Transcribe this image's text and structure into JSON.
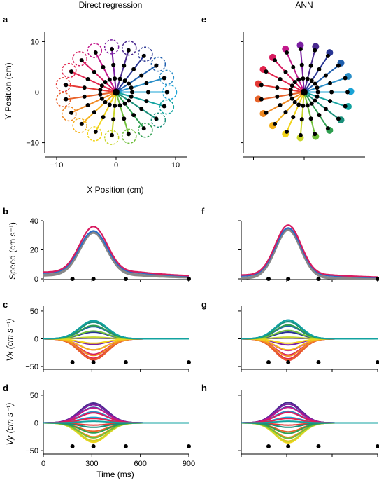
{
  "columns": [
    {
      "letter_top": "a",
      "title": "Direct regression"
    },
    {
      "letter_top": "e",
      "title": "ANN"
    }
  ],
  "panel_letters": [
    "a",
    "b",
    "c",
    "d",
    "e",
    "f",
    "g",
    "h"
  ],
  "colors": [
    "#1aa3d6",
    "#2b8fc8",
    "#1f5fae",
    "#283593",
    "#4a2a8f",
    "#7b1fa2",
    "#c2188b",
    "#d81b60",
    "#e2244d",
    "#e53935",
    "#e8632a",
    "#f08a24",
    "#f5b21c",
    "#f2d41a",
    "#c9d62a",
    "#6fbf3a",
    "#2e9e4f",
    "#1a8f7a",
    "#13a3a0"
  ],
  "chart_data": [
    {
      "id": "a",
      "type": "scatter",
      "title": "Direct regression",
      "xlabel": "X Position (cm)",
      "ylabel": "Y Position (cm)",
      "xlim": [
        -12,
        12
      ],
      "ylim": [
        -12,
        12
      ],
      "xticks": [
        -10,
        0,
        10
      ],
      "yticks": [
        -10,
        0,
        10
      ],
      "xtick_labels": [
        "−10",
        "0",
        "10"
      ],
      "ytick_labels": [
        "−10",
        "0",
        "10"
      ],
      "n_targets": 19,
      "target_radius": 9,
      "waypoints": [
        0.3,
        0.6,
        0.95
      ],
      "target_marker": "dashed-circle"
    },
    {
      "id": "e",
      "type": "scatter",
      "title": "ANN",
      "xlim": [
        -12,
        12
      ],
      "ylim": [
        -12,
        12
      ],
      "xticks": [
        -10,
        0,
        10
      ],
      "yticks": [
        -10,
        0,
        10
      ],
      "n_targets": 19,
      "target_radius": 9,
      "waypoints": [
        0.3,
        0.6,
        0.95
      ],
      "target_marker": "filled-dot"
    },
    {
      "id": "b",
      "type": "line",
      "ylabel": "Speed (cm s⁻¹)",
      "xlim": [
        0,
        900
      ],
      "ylim": [
        0,
        40
      ],
      "yticks": [
        0,
        20,
        40
      ],
      "ytick_labels": [
        "0",
        "20",
        "40"
      ],
      "peak_time": 310,
      "peak": [
        33,
        36
      ],
      "baseline": 4,
      "event_times": [
        180,
        310,
        510,
        900
      ]
    },
    {
      "id": "c",
      "type": "line",
      "ylabel": "Vx (cm s⁻¹)",
      "xlim": [
        0,
        900
      ],
      "ylim": [
        -60,
        60
      ],
      "yticks": [
        -50,
        0,
        50
      ],
      "ytick_labels": [
        "−50",
        "0",
        "50"
      ],
      "peak_time": 310,
      "amplitudes": [
        32,
        30,
        22,
        12,
        2,
        -10,
        -20,
        -28,
        -35,
        -38,
        -37,
        -30,
        -20,
        -8,
        3,
        14,
        24,
        30,
        33
      ],
      "event_times": [
        180,
        310,
        510,
        900
      ]
    },
    {
      "id": "d",
      "type": "line",
      "ylabel": "Vy (cm s⁻¹)",
      "xlim": [
        0,
        900
      ],
      "ylim": [
        -60,
        60
      ],
      "yticks": [
        -50,
        0,
        50
      ],
      "ytick_labels": [
        "−50",
        "0",
        "50"
      ],
      "peak_time": 310,
      "amplitudes": [
        10,
        20,
        28,
        33,
        36,
        33,
        27,
        18,
        8,
        -4,
        -15,
        -25,
        -32,
        -35,
        -33,
        -27,
        -18,
        -8,
        3
      ],
      "event_times": [
        180,
        310,
        510,
        900
      ]
    },
    {
      "id": "f",
      "type": "line",
      "xlim": [
        0,
        900
      ],
      "ylim": [
        0,
        40
      ],
      "peak_time": 310,
      "peak": [
        35,
        37
      ],
      "baseline": 2,
      "event_times": [
        180,
        310,
        510,
        900
      ]
    },
    {
      "id": "g",
      "type": "line",
      "xlim": [
        0,
        900
      ],
      "ylim": [
        -60,
        60
      ],
      "peak_time": 310,
      "amplitudes": [
        34,
        31,
        23,
        12,
        2,
        -11,
        -21,
        -29,
        -36,
        -39,
        -38,
        -31,
        -20,
        -8,
        3,
        15,
        25,
        31,
        34
      ],
      "event_times": [
        180,
        310,
        510,
        900
      ]
    },
    {
      "id": "h",
      "type": "line",
      "xlim": [
        0,
        900
      ],
      "ylim": [
        -60,
        60
      ],
      "peak_time": 310,
      "amplitudes": [
        10,
        21,
        29,
        34,
        37,
        34,
        28,
        19,
        8,
        -4,
        -16,
        -26,
        -33,
        -36,
        -34,
        -28,
        -19,
        -8,
        3
      ],
      "event_times": [
        180,
        310,
        510,
        900
      ]
    }
  ],
  "shared_x": {
    "xlabel": "Time (ms)",
    "xticks": [
      0,
      300,
      600,
      900
    ],
    "xtick_labels": [
      "0",
      "300",
      "600",
      "900"
    ]
  }
}
